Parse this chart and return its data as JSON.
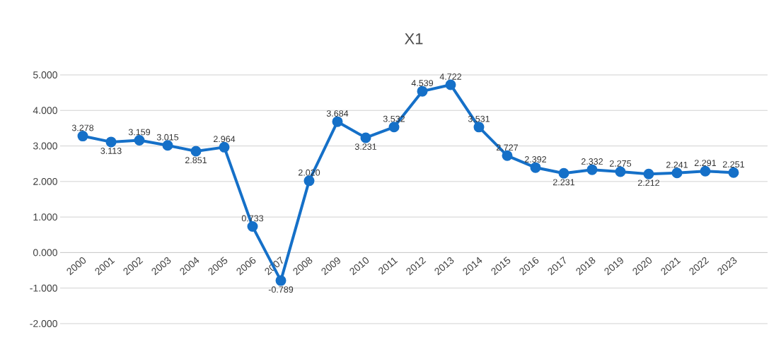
{
  "chart_data": {
    "type": "line",
    "title": "X1",
    "categories": [
      "2000",
      "2001",
      "2002",
      "2003",
      "2004",
      "2005",
      "2006",
      "2007",
      "2008",
      "2009",
      "2010",
      "2011",
      "2012",
      "2013",
      "2014",
      "2015",
      "2016",
      "2017",
      "2018",
      "2019",
      "2020",
      "2021",
      "2022",
      "2023"
    ],
    "values": [
      3.278,
      3.113,
      3.159,
      3.015,
      2.851,
      2.964,
      0.733,
      -0.789,
      2.02,
      3.684,
      3.231,
      3.532,
      4.539,
      4.722,
      3.531,
      2.727,
      2.392,
      2.231,
      2.332,
      2.275,
      2.212,
      2.241,
      2.291,
      2.251
    ],
    "value_labels": [
      "3.278",
      "3.113",
      "3.159",
      "3.015",
      "2.851",
      "2.964",
      "0.733",
      "-0.789",
      "2.020",
      "3.684",
      "3.231",
      "3.532",
      "4.539",
      "4.722",
      "3.531",
      "2.727",
      "2.392",
      "2.231",
      "2.332",
      "2.275",
      "2.212",
      "2.241",
      "2.291",
      "2.251"
    ],
    "color": "#1570c8",
    "marker": "circle",
    "line_style": "solid",
    "grid": "y",
    "ylim": [
      -2,
      5
    ],
    "yticks": [
      {
        "value": -2,
        "label": "-2.000"
      },
      {
        "value": -1,
        "label": "-1.000"
      },
      {
        "value": 0,
        "label": "0.000"
      },
      {
        "value": 1,
        "label": "1.000"
      },
      {
        "value": 2,
        "label": "2.000"
      },
      {
        "value": 3,
        "label": "3.000"
      },
      {
        "value": 4,
        "label": "4.000"
      },
      {
        "value": 5,
        "label": "5.000"
      }
    ]
  }
}
